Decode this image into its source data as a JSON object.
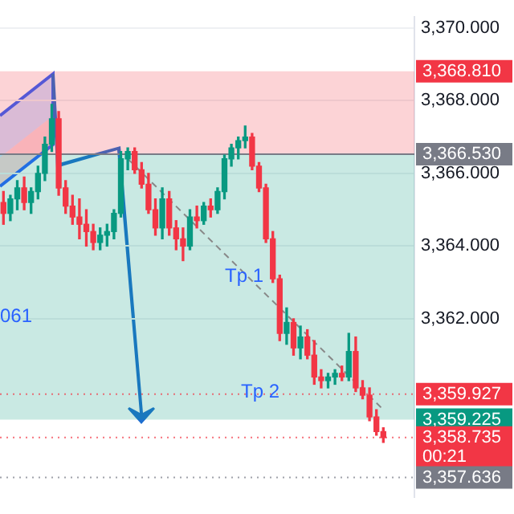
{
  "chart_data": {
    "type": "candlestick",
    "categories": [
      null,
      null,
      null,
      null,
      null,
      null,
      null,
      null,
      null,
      null,
      null,
      null,
      null,
      null,
      null,
      null,
      null,
      null,
      null,
      null,
      null,
      null,
      null,
      null,
      null,
      null,
      null,
      null,
      null,
      null,
      null,
      null,
      null,
      null,
      null,
      null,
      null,
      null,
      null,
      null,
      null,
      null,
      null,
      null,
      null,
      null,
      null,
      null,
      null,
      null,
      null,
      null,
      null,
      null,
      null,
      null,
      null,
      null,
      null,
      null
    ],
    "ohlc": [
      [
        3365.2,
        3365.5,
        3364.6,
        3364.9
      ],
      [
        3364.9,
        3365.4,
        3364.7,
        3365.3
      ],
      [
        3365.3,
        3365.8,
        3365.0,
        3365.6
      ],
      [
        3365.6,
        3365.9,
        3365.0,
        3365.2
      ],
      [
        3365.2,
        3365.6,
        3364.9,
        3365.5
      ],
      [
        3365.5,
        3366.2,
        3365.3,
        3366.0
      ],
      [
        3366.0,
        3367.0,
        3365.8,
        3366.8
      ],
      [
        3366.8,
        3367.9,
        3366.6,
        3367.5
      ],
      [
        3367.5,
        3367.7,
        3365.4,
        3365.6
      ],
      [
        3365.6,
        3365.8,
        3364.9,
        3365.1
      ],
      [
        3365.1,
        3365.4,
        3364.6,
        3364.8
      ],
      [
        3364.8,
        3365.3,
        3364.2,
        3364.6
      ],
      [
        3364.6,
        3365.0,
        3364.0,
        3364.4
      ],
      [
        3364.4,
        3364.6,
        3363.9,
        3364.1
      ],
      [
        3364.1,
        3364.5,
        3363.9,
        3364.3
      ],
      [
        3364.3,
        3364.6,
        3364.0,
        3364.4
      ],
      [
        3364.4,
        3365.0,
        3364.2,
        3364.9
      ],
      [
        3364.9,
        3366.6,
        3364.8,
        3366.4
      ],
      [
        3366.4,
        3366.7,
        3366.1,
        3366.6
      ],
      [
        3366.6,
        3366.7,
        3366.0,
        3366.1
      ],
      [
        3366.1,
        3366.3,
        3365.6,
        3365.7
      ],
      [
        3365.7,
        3366.0,
        3364.9,
        3365.0
      ],
      [
        3365.0,
        3365.3,
        3364.3,
        3364.5
      ],
      [
        3364.5,
        3365.6,
        3364.2,
        3365.3
      ],
      [
        3365.3,
        3365.5,
        3364.3,
        3364.5
      ],
      [
        3364.5,
        3364.7,
        3363.9,
        3364.2
      ],
      [
        3364.2,
        3364.5,
        3363.6,
        3364.0
      ],
      [
        3364.0,
        3365.0,
        3363.9,
        3364.8
      ],
      [
        3364.8,
        3365.1,
        3364.5,
        3364.7
      ],
      [
        3364.7,
        3365.2,
        3364.6,
        3365.1
      ],
      [
        3365.1,
        3365.3,
        3364.8,
        3365.0
      ],
      [
        3365.0,
        3365.6,
        3364.9,
        3365.5
      ],
      [
        3365.5,
        3366.5,
        3365.3,
        3366.4
      ],
      [
        3366.4,
        3366.8,
        3366.2,
        3366.7
      ],
      [
        3366.7,
        3367.0,
        3366.4,
        3366.9
      ],
      [
        3366.9,
        3367.3,
        3366.7,
        3367.0
      ],
      [
        3367.0,
        3367.1,
        3366.1,
        3366.2
      ],
      [
        3366.2,
        3366.3,
        3365.5,
        3365.6
      ],
      [
        3365.6,
        3365.7,
        3364.1,
        3364.2
      ],
      [
        3364.2,
        3364.4,
        3363.0,
        3363.1
      ],
      [
        3363.1,
        3363.2,
        3361.4,
        3361.6
      ],
      [
        3361.6,
        3362.3,
        3361.3,
        3361.9
      ],
      [
        3361.9,
        3362.0,
        3361.0,
        3361.2
      ],
      [
        3361.2,
        3361.8,
        3360.9,
        3361.5
      ],
      [
        3361.5,
        3361.7,
        3360.9,
        3361.0
      ],
      [
        3361.0,
        3361.4,
        3360.2,
        3360.4
      ],
      [
        3360.4,
        3360.6,
        3360.1,
        3360.3
      ],
      [
        3360.3,
        3360.5,
        3360.1,
        3360.4
      ],
      [
        3360.4,
        3360.6,
        3360.2,
        3360.5
      ],
      [
        3360.5,
        3360.7,
        3360.3,
        3360.4
      ],
      [
        3360.4,
        3361.6,
        3360.3,
        3361.1
      ],
      [
        3361.1,
        3361.5,
        3360.0,
        3360.1
      ],
      [
        3360.1,
        3360.3,
        3359.8,
        3359.9
      ],
      [
        3359.9,
        3360.1,
        3359.2,
        3359.3
      ],
      [
        3359.3,
        3359.5,
        3358.8,
        3358.9
      ],
      [
        3358.9,
        3359.0,
        3358.6,
        3358.735
      ],
      null,
      null,
      null,
      null
    ],
    "colors": [
      "#f23645",
      "#089981",
      "#089981",
      "#f23645",
      "#089981",
      "#089981",
      "#089981",
      "#089981",
      "#f23645",
      "#f23645",
      "#f23645",
      "#f23645",
      "#f23645",
      "#f23645",
      "#089981",
      "#089981",
      "#089981",
      "#089981",
      "#089981",
      "#f23645",
      "#f23645",
      "#f23645",
      "#f23645",
      "#089981",
      "#f23645",
      "#f23645",
      "#f23645",
      "#089981",
      "#f23645",
      "#089981",
      "#f23645",
      "#089981",
      "#089981",
      "#089981",
      "#089981",
      "#089981",
      "#f23645",
      "#f23645",
      "#f23645",
      "#f23645",
      "#f23645",
      "#089981",
      "#f23645",
      "#089981",
      "#f23645",
      "#f23645",
      "#f23645",
      "#089981",
      "#089981",
      "#f23645",
      "#089981",
      "#f23645",
      "#f23645",
      "#f23645",
      "#f23645",
      "#f23645",
      null,
      null,
      null,
      null
    ],
    "series": [
      {
        "type": "line",
        "color": "#888888",
        "line_style": "dashed",
        "values": [
          null,
          null,
          null,
          null,
          null,
          null,
          null,
          null,
          null,
          null,
          null,
          null,
          null,
          null,
          null,
          null,
          null,
          null,
          3366.4,
          null,
          null,
          null,
          null,
          null,
          null,
          null,
          null,
          null,
          null,
          null,
          null,
          null,
          null,
          null,
          null,
          null,
          null,
          null,
          null,
          null,
          null,
          null,
          null,
          null,
          null,
          null,
          null,
          null,
          null,
          null,
          null,
          null,
          null,
          null,
          null,
          3359.5,
          null,
          null,
          null,
          null
        ]
      }
    ],
    "ylim": [
      3357.1,
      3370.3
    ],
    "yticks": [
      {
        "value": 3362,
        "label": "3,362.000"
      },
      {
        "value": 3364,
        "label": "3,364.000"
      },
      {
        "value": 3366,
        "label": "3,366.000"
      },
      {
        "value": 3368,
        "label": "3,368.000"
      },
      {
        "value": 3370,
        "label": "3,370.000"
      }
    ],
    "grid": "y",
    "tick_labels": "y",
    "legend": false,
    "bands": [
      {
        "axis": "y",
        "from": 3366.53,
        "to": 3368.81,
        "label": "3,368.810",
        "color": "#f23645"
      },
      {
        "axis": "y",
        "from": 3366.53,
        "to": 3359.225,
        "label": "3,359.225",
        "color": "#089981"
      }
    ],
    "ref_lines": [
      {
        "axis": "y",
        "value": 3366.53,
        "label": "3,366.530",
        "color": "#787b86",
        "line_style": "solid"
      },
      {
        "axis": "y",
        "value": 3358.735,
        "label": "3,358.735",
        "color": "#f23645",
        "line_style": "dotted"
      },
      {
        "axis": "y",
        "value": 3359.927,
        "label": "3,359.927",
        "color": "#f23645",
        "line_style": "dotted"
      },
      {
        "axis": "y",
        "value": 3357.636,
        "label": "3,357.636",
        "color": "#787b86",
        "line_style": "dotted"
      }
    ],
    "annotations": [
      "Tp 1",
      "Tp 2",
      "061",
      "00:21"
    ]
  }
}
